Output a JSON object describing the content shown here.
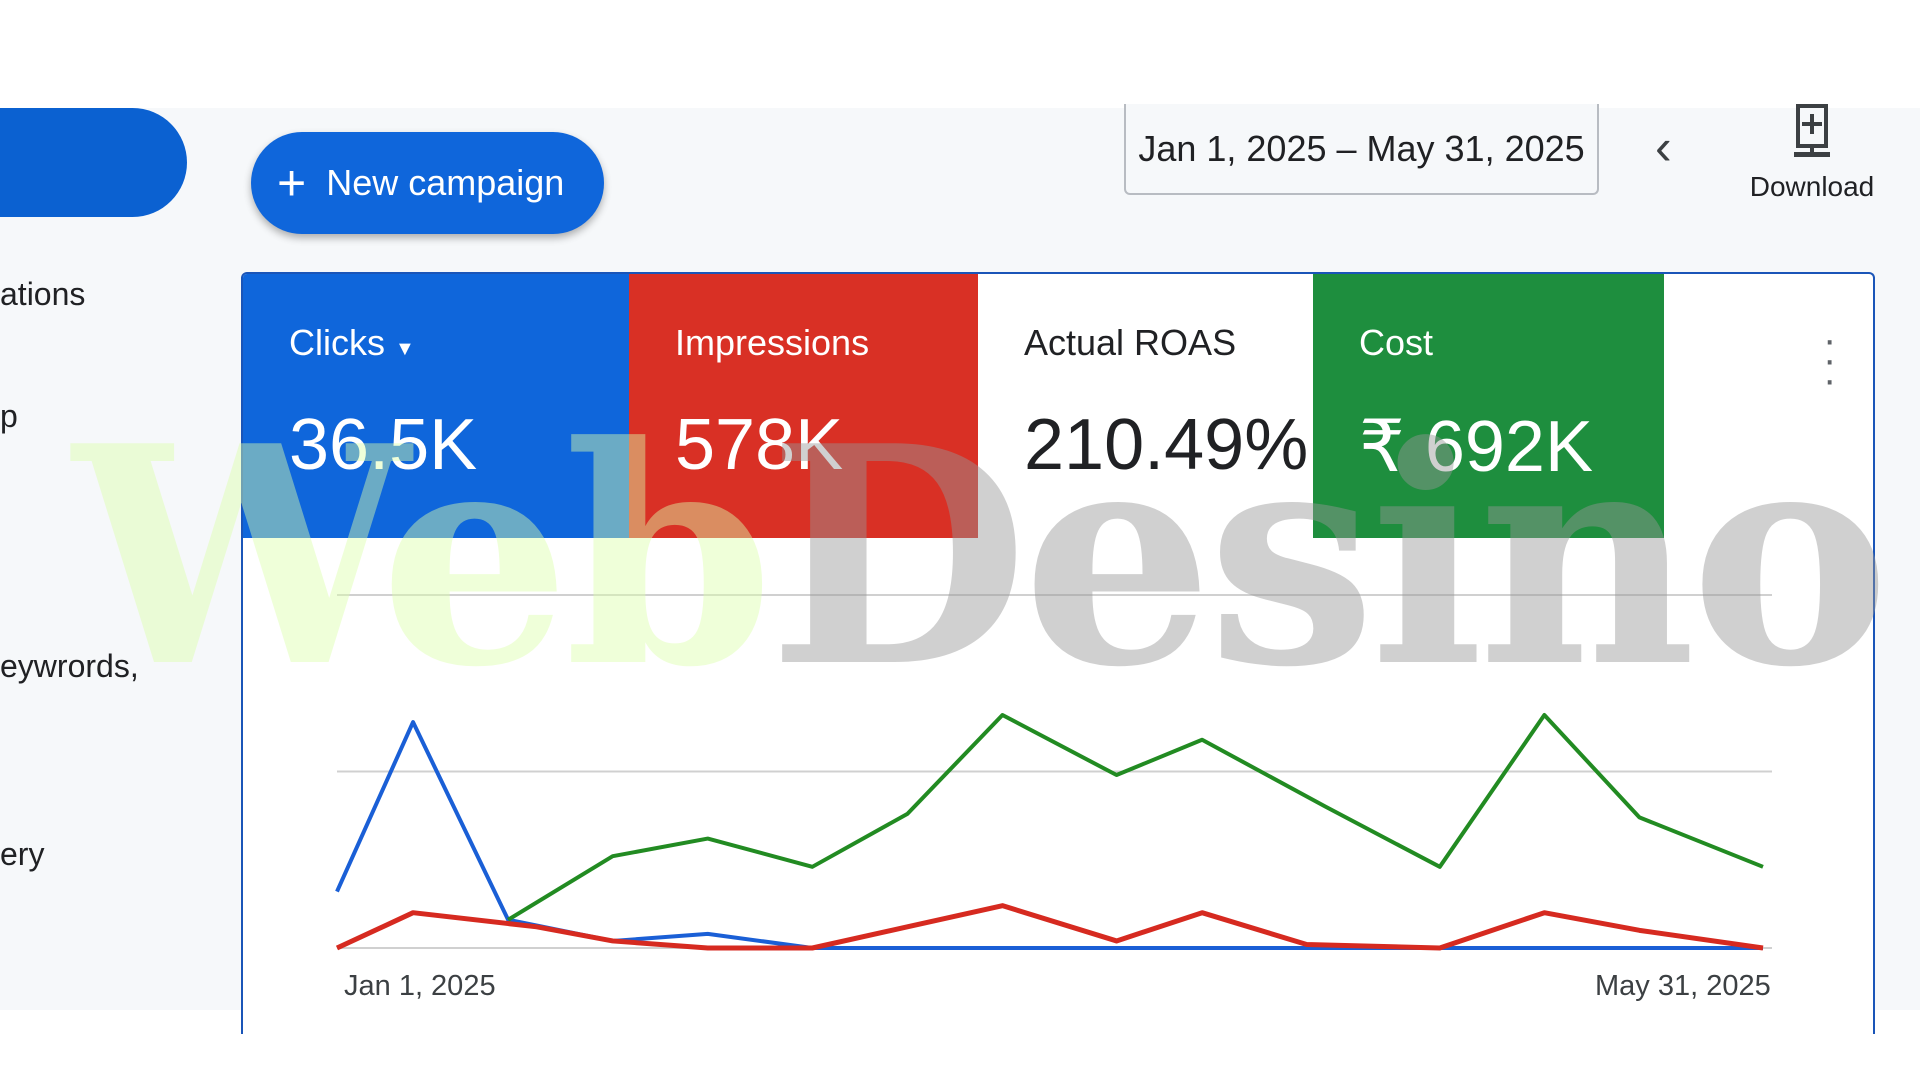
{
  "sidebar": {
    "items": [
      "ations",
      "p",
      "eywrords,",
      "ery"
    ]
  },
  "toolbar": {
    "new_campaign": "New campaign",
    "plus_icon": "plus-icon",
    "date_range": "Jan 1, 2025 – May 31, 2025",
    "prev_icon": "chevron-left-icon",
    "download_label": "Download",
    "download_icon": "download-icon"
  },
  "metrics": [
    {
      "label": "Clicks",
      "value": "36.5K",
      "color": "#0f66db",
      "dropdown": true
    },
    {
      "label": "Impressions",
      "value": "578K",
      "color": "#d93025"
    },
    {
      "label": "Actual ROAS",
      "value": "210.49%",
      "color": "#ffffff"
    },
    {
      "label": "Cost",
      "value": "₹ 692K",
      "color": "#1e8e3e"
    }
  ],
  "watermark": {
    "text_a": "Web",
    "text_b": "Desino"
  },
  "chart_data": {
    "type": "line",
    "x_start_label": "Jan 1, 2025",
    "x_end_label": "May 31, 2025",
    "xlim": [
      "2025-01-01",
      "2025-05-31"
    ],
    "ylim": [
      0,
      100
    ],
    "grid": true,
    "series": [
      {
        "color": "#1a5fd6",
        "points": [
          [
            "2025-01-01",
            16
          ],
          [
            "2025-01-09",
            64
          ],
          [
            "2025-01-19",
            8
          ],
          [
            "2025-01-30",
            2
          ],
          [
            "2025-02-09",
            4
          ],
          [
            "2025-02-20",
            0
          ],
          [
            "2025-05-31",
            0
          ]
        ]
      },
      {
        "color": "#228b22",
        "points": [
          [
            "2025-01-19",
            8
          ],
          [
            "2025-01-30",
            26
          ],
          [
            "2025-02-09",
            31
          ],
          [
            "2025-02-20",
            23
          ],
          [
            "2025-03-02",
            38
          ],
          [
            "2025-03-12",
            66
          ],
          [
            "2025-03-24",
            49
          ],
          [
            "2025-04-02",
            59
          ],
          [
            "2025-04-15",
            40
          ],
          [
            "2025-04-27",
            23
          ],
          [
            "2025-05-08",
            66
          ],
          [
            "2025-05-18",
            37
          ],
          [
            "2025-05-31",
            23
          ]
        ]
      },
      {
        "color": "#d62a20",
        "points": [
          [
            "2025-01-01",
            0
          ],
          [
            "2025-01-09",
            10
          ],
          [
            "2025-01-22",
            6
          ],
          [
            "2025-01-30",
            2
          ],
          [
            "2025-02-09",
            0
          ],
          [
            "2025-02-20",
            0
          ],
          [
            "2025-03-02",
            6
          ],
          [
            "2025-03-12",
            12
          ],
          [
            "2025-03-24",
            2
          ],
          [
            "2025-04-02",
            10
          ],
          [
            "2025-04-13",
            1
          ],
          [
            "2025-04-27",
            0
          ],
          [
            "2025-05-08",
            10
          ],
          [
            "2025-05-18",
            5
          ],
          [
            "2025-05-31",
            0
          ]
        ]
      }
    ]
  }
}
